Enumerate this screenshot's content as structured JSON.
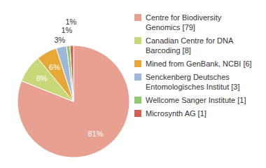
{
  "chart_data": {
    "type": "pie",
    "categories": [
      "Centre for Biodiversity\nGenomics [79]",
      "Canadian Centre for DNA\nBarcoding [8]",
      "Mined from GenBank, NCBI [6]",
      "Senckenberg Deutsches\nEntomologisches Institut [3]",
      "Wellcome Sanger Institute [1]",
      "Microsynth AG [1]"
    ],
    "values": [
      81,
      8,
      6,
      3,
      1,
      1
    ],
    "value_labels": [
      "81%",
      "8%",
      "6%",
      "3%",
      "1%",
      "1%"
    ],
    "colors": [
      "#e8a090",
      "#c8d878",
      "#e8a838",
      "#a0b8d8",
      "#90c870",
      "#d06050"
    ],
    "data_labels": true,
    "legend": "right"
  }
}
